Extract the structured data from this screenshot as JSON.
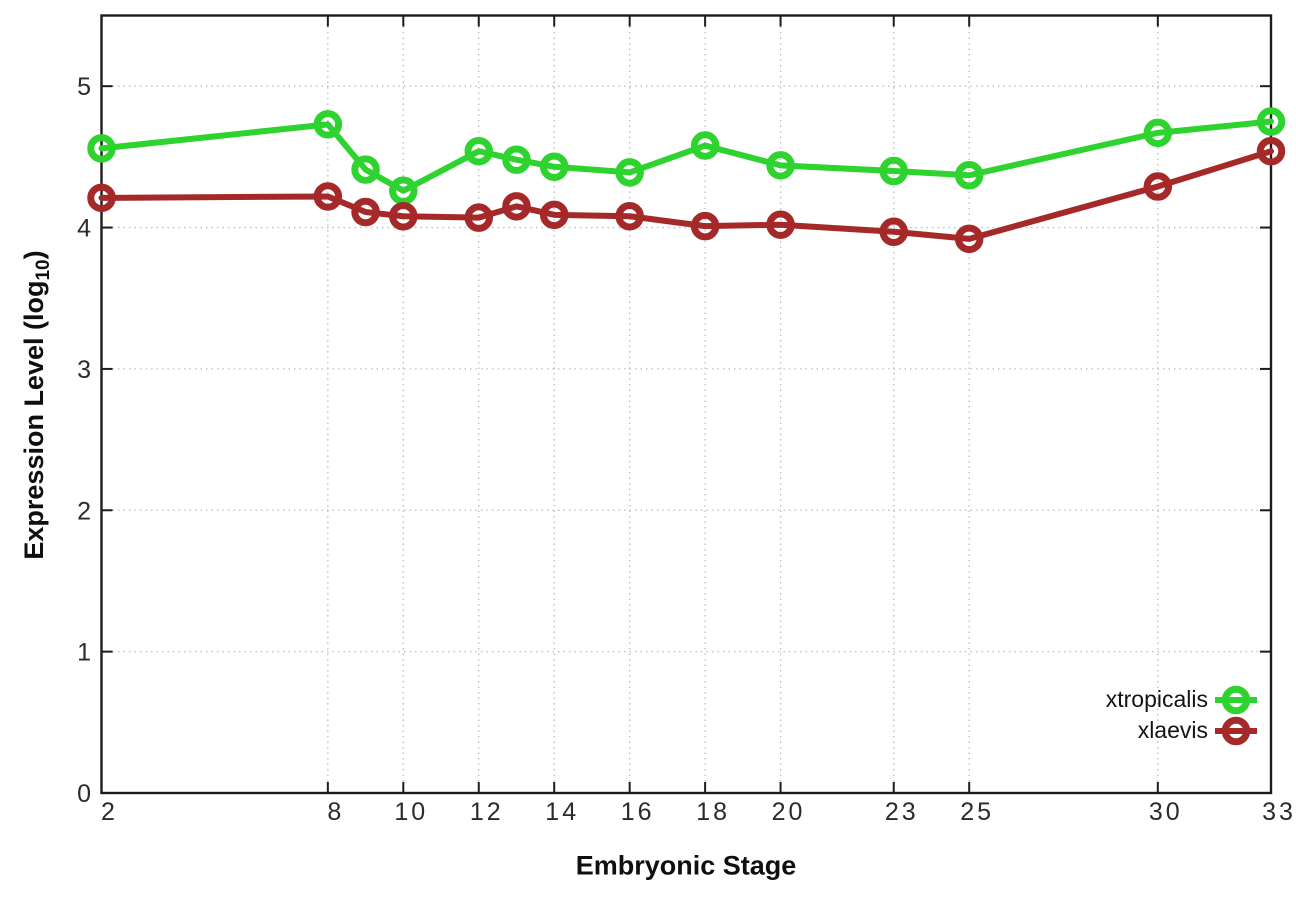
{
  "chart_data": {
    "type": "line",
    "title": "",
    "xlabel": "Embryonic Stage",
    "ylabel_main": "Expression Level (log",
    "ylabel_sub": "10",
    "ylabel_close": ")",
    "x": [
      2,
      8,
      9,
      10,
      12,
      13,
      14,
      16,
      18,
      20,
      23,
      25,
      30,
      33
    ],
    "series": [
      {
        "name": "xtropicalis",
        "color": "#2fd32f",
        "values": [
          4.56,
          4.73,
          4.41,
          4.26,
          4.54,
          4.48,
          4.43,
          4.39,
          4.58,
          4.44,
          4.4,
          4.37,
          4.67,
          4.75
        ]
      },
      {
        "name": "xlaevis",
        "color": "#a52929",
        "values": [
          4.21,
          4.22,
          4.11,
          4.08,
          4.07,
          4.15,
          4.09,
          4.08,
          4.01,
          4.02,
          3.97,
          3.92,
          4.29,
          4.54
        ]
      }
    ],
    "x_ticks": [
      2,
      8,
      10,
      12,
      14,
      16,
      18,
      20,
      23,
      25,
      30,
      33
    ],
    "y_ticks": [
      0,
      1,
      2,
      3,
      4,
      5
    ],
    "xlim": [
      2,
      33
    ],
    "ylim": [
      0,
      5.5
    ],
    "grid": true,
    "legend_position": "bottom-right",
    "grid_color": "#bdbdbd",
    "axis_color": "#1c1c1c",
    "tick_label_color": "#2b2b2b"
  }
}
